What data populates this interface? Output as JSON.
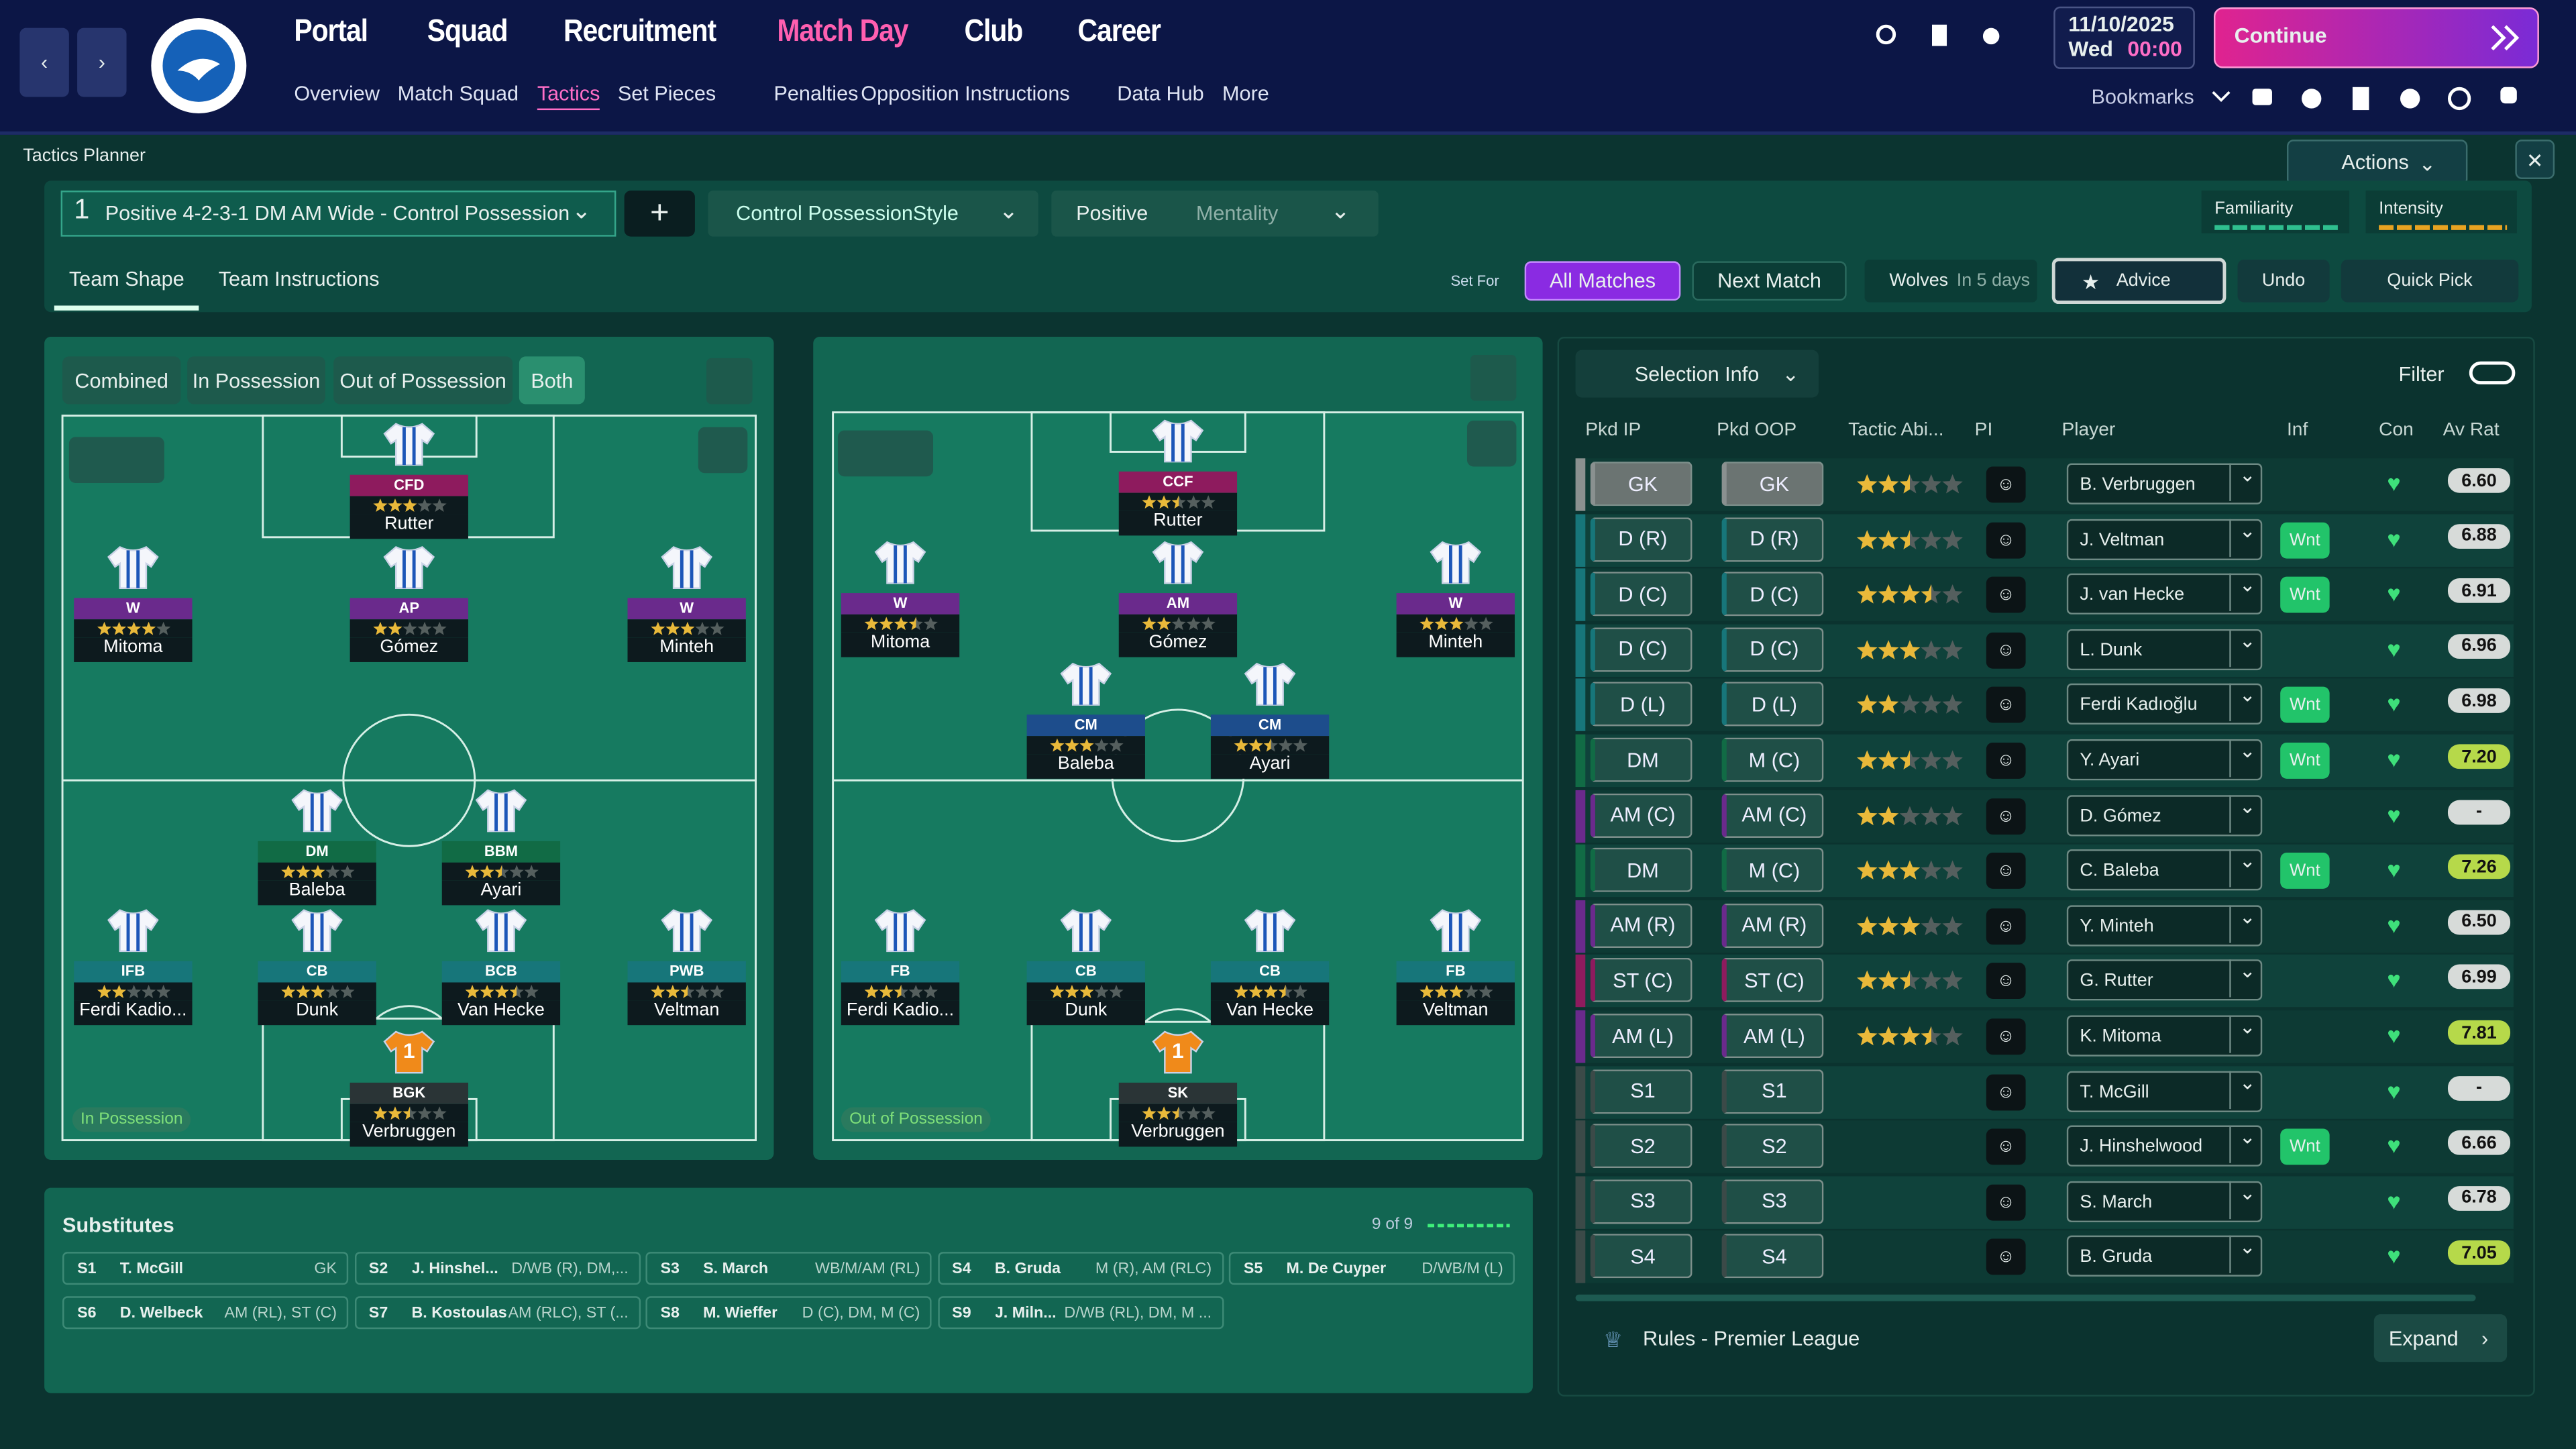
{
  "header": {
    "nav": [
      "Portal",
      "Squad",
      "Recruitment",
      "Match Day",
      "Club",
      "Career"
    ],
    "subnav": [
      "Overview",
      "Match Squad",
      "Tactics",
      "Set Pieces",
      "Penalties",
      "Opposition Instructions",
      "Data Hub",
      "More"
    ],
    "date": "11/10/2025",
    "day": "Wed",
    "time": "00:00",
    "continue": "Continue",
    "bookmarks": "Bookmarks"
  },
  "planner": {
    "title": "Tactics Planner",
    "actions": "Actions",
    "tactic_number": "1",
    "tactic_name": "Positive 4-2-3-1 DM AM Wide - Control Possession",
    "style": "Control Possession",
    "style_label": "Style",
    "mentality": "Positive",
    "mentality_label": "Mentality",
    "familiarity": "Familiarity",
    "intensity": "Intensity",
    "tabs": [
      "Team Shape",
      "Team Instructions"
    ],
    "set_for": "Set For",
    "options": [
      "All Matches",
      "Next Match"
    ],
    "opponent": "Wolves",
    "opponent_when": "In 5 days",
    "advice": "Advice",
    "undo": "Undo",
    "quick_pick": "Quick Pick",
    "views": [
      "Combined",
      "In Possession",
      "Out of Possession",
      "Both"
    ]
  },
  "pitches": [
    {
      "label": "In Possession",
      "players": [
        {
          "role": "CFD",
          "name": "Rutter",
          "stars": 3,
          "color": "#8e1b5e"
        },
        {
          "role": "W",
          "name": "Mitoma",
          "stars": 4,
          "color": "#6a2a8c"
        },
        {
          "role": "AP",
          "name": "Gómez",
          "stars": 2,
          "color": "#6a2a8c"
        },
        {
          "role": "W",
          "name": "Minteh",
          "stars": 3,
          "color": "#6a2a8c"
        },
        {
          "role": "DM",
          "name": "Baleba",
          "stars": 3,
          "color": "#116b45"
        },
        {
          "role": "BBM",
          "name": "Ayari",
          "stars": 2.5,
          "color": "#116b45"
        },
        {
          "role": "IFB",
          "name": "Ferdi Kadio...",
          "stars": 2,
          "color": "#17767a"
        },
        {
          "role": "CB",
          "name": "Dunk",
          "stars": 3,
          "color": "#17767a"
        },
        {
          "role": "BCB",
          "name": "Van Hecke",
          "stars": 3.5,
          "color": "#17767a"
        },
        {
          "role": "PWB",
          "name": "Veltman",
          "stars": 2.5,
          "color": "#17767a"
        },
        {
          "role": "BGK",
          "name": "Verbruggen",
          "stars": 2.5,
          "color": "#2a3436",
          "number": "1"
        }
      ]
    },
    {
      "label": "Out of Possession",
      "players": [
        {
          "role": "CCF",
          "name": "Rutter",
          "stars": 2.5,
          "color": "#8e1b5e"
        },
        {
          "role": "W",
          "name": "Mitoma",
          "stars": 3.5,
          "color": "#6a2a8c"
        },
        {
          "role": "AM",
          "name": "Gómez",
          "stars": 2,
          "color": "#6a2a8c"
        },
        {
          "role": "W",
          "name": "Minteh",
          "stars": 3,
          "color": "#6a2a8c"
        },
        {
          "role": "CM",
          "name": "Baleba",
          "stars": 3,
          "color": "#1d4d8c"
        },
        {
          "role": "CM",
          "name": "Ayari",
          "stars": 2.5,
          "color": "#1d4d8c"
        },
        {
          "role": "FB",
          "name": "Ferdi Kadio...",
          "stars": 2.5,
          "color": "#17767a"
        },
        {
          "role": "CB",
          "name": "Dunk",
          "stars": 3,
          "color": "#17767a"
        },
        {
          "role": "CB",
          "name": "Van Hecke",
          "stars": 3.5,
          "color": "#17767a"
        },
        {
          "role": "FB",
          "name": "Veltman",
          "stars": 3,
          "color": "#17767a"
        },
        {
          "role": "SK",
          "name": "Verbruggen",
          "stars": 2.5,
          "color": "#2a3436",
          "number": "1"
        }
      ]
    }
  ],
  "substitutes": {
    "title": "Substitutes",
    "count": "9 of 9",
    "items": [
      {
        "slot": "S1",
        "name": "T. McGill",
        "pos": "GK"
      },
      {
        "slot": "S2",
        "name": "J. Hinshel...",
        "pos": "D/WB (R), DM,..."
      },
      {
        "slot": "S3",
        "name": "S. March",
        "pos": "WB/M/AM (RL)"
      },
      {
        "slot": "S4",
        "name": "B. Gruda",
        "pos": "M (R), AM (RLC)"
      },
      {
        "slot": "S5",
        "name": "M. De Cuyper",
        "pos": "D/WB/M (L)"
      },
      {
        "slot": "S6",
        "name": "D. Welbeck",
        "pos": "AM (RL), ST (C)"
      },
      {
        "slot": "S7",
        "name": "B. Kostoulas",
        "pos": "AM (RLC), ST (..."
      },
      {
        "slot": "S8",
        "name": "M. Wieffer",
        "pos": "D (C), DM, M (C)"
      },
      {
        "slot": "S9",
        "name": "J. Miln...",
        "pos": "D/WB (RL), DM, M ..."
      }
    ]
  },
  "selection": {
    "button": "Selection Info",
    "filter": "Filter",
    "columns": [
      "Pkd IP",
      "Pkd OOP",
      "Tactic Abi...",
      "PI",
      "Player",
      "Inf",
      "Con",
      "Av Rat"
    ],
    "rows": [
      {
        "ip": "GK",
        "oop": "GK",
        "stars": 2.5,
        "player": "B. Verbruggen",
        "rating": "6.60",
        "color": "#8a9190"
      },
      {
        "ip": "D (R)",
        "oop": "D (R)",
        "stars": 2.5,
        "player": "J. Veltman",
        "inf": "Wnt",
        "rating": "6.88",
        "color": "#17767a"
      },
      {
        "ip": "D (C)",
        "oop": "D (C)",
        "stars": 3.5,
        "player": "J. van Hecke",
        "inf": "Wnt",
        "rating": "6.91",
        "color": "#17767a"
      },
      {
        "ip": "D (C)",
        "oop": "D (C)",
        "stars": 3,
        "player": "L. Dunk",
        "rating": "6.96",
        "color": "#17767a"
      },
      {
        "ip": "D (L)",
        "oop": "D (L)",
        "stars": 2,
        "player": "Ferdi Kadıoğlu",
        "inf": "Wnt",
        "rating": "6.98",
        "color": "#17767a"
      },
      {
        "ip": "DM",
        "oop": "M (C)",
        "stars": 2.5,
        "player": "Y. Ayari",
        "inf": "Wnt",
        "rating": "7.20",
        "color": "#116b45"
      },
      {
        "ip": "AM (C)",
        "oop": "AM (C)",
        "stars": 2,
        "player": "D. Gómez",
        "rating": "-",
        "color": "#6a2a8c"
      },
      {
        "ip": "DM",
        "oop": "M (C)",
        "stars": 3,
        "player": "C. Baleba",
        "inf": "Wnt",
        "rating": "7.26",
        "color": "#116b45"
      },
      {
        "ip": "AM (R)",
        "oop": "AM (R)",
        "stars": 3,
        "player": "Y. Minteh",
        "rating": "6.50",
        "color": "#6a2a8c"
      },
      {
        "ip": "ST (C)",
        "oop": "ST (C)",
        "stars": 2.5,
        "player": "G. Rutter",
        "rating": "6.99",
        "color": "#8e1b5e"
      },
      {
        "ip": "AM (L)",
        "oop": "AM (L)",
        "stars": 3.5,
        "player": "K. Mitoma",
        "rating": "7.81",
        "color": "#6a2a8c"
      },
      {
        "ip": "S1",
        "oop": "S1",
        "player": "T. McGill",
        "rating": "-",
        "color": "#3b4a48"
      },
      {
        "ip": "S2",
        "oop": "S2",
        "player": "J. Hinshelwood",
        "inf": "Wnt",
        "rating": "6.66",
        "color": "#3b4a48"
      },
      {
        "ip": "S3",
        "oop": "S3",
        "player": "S. March",
        "rating": "6.78",
        "color": "#3b4a48"
      },
      {
        "ip": "S4",
        "oop": "S4",
        "player": "B. Gruda",
        "rating": "7.05",
        "color": "#3b4a48"
      }
    ],
    "rules": "Rules - Premier League",
    "expand": "Expand"
  }
}
